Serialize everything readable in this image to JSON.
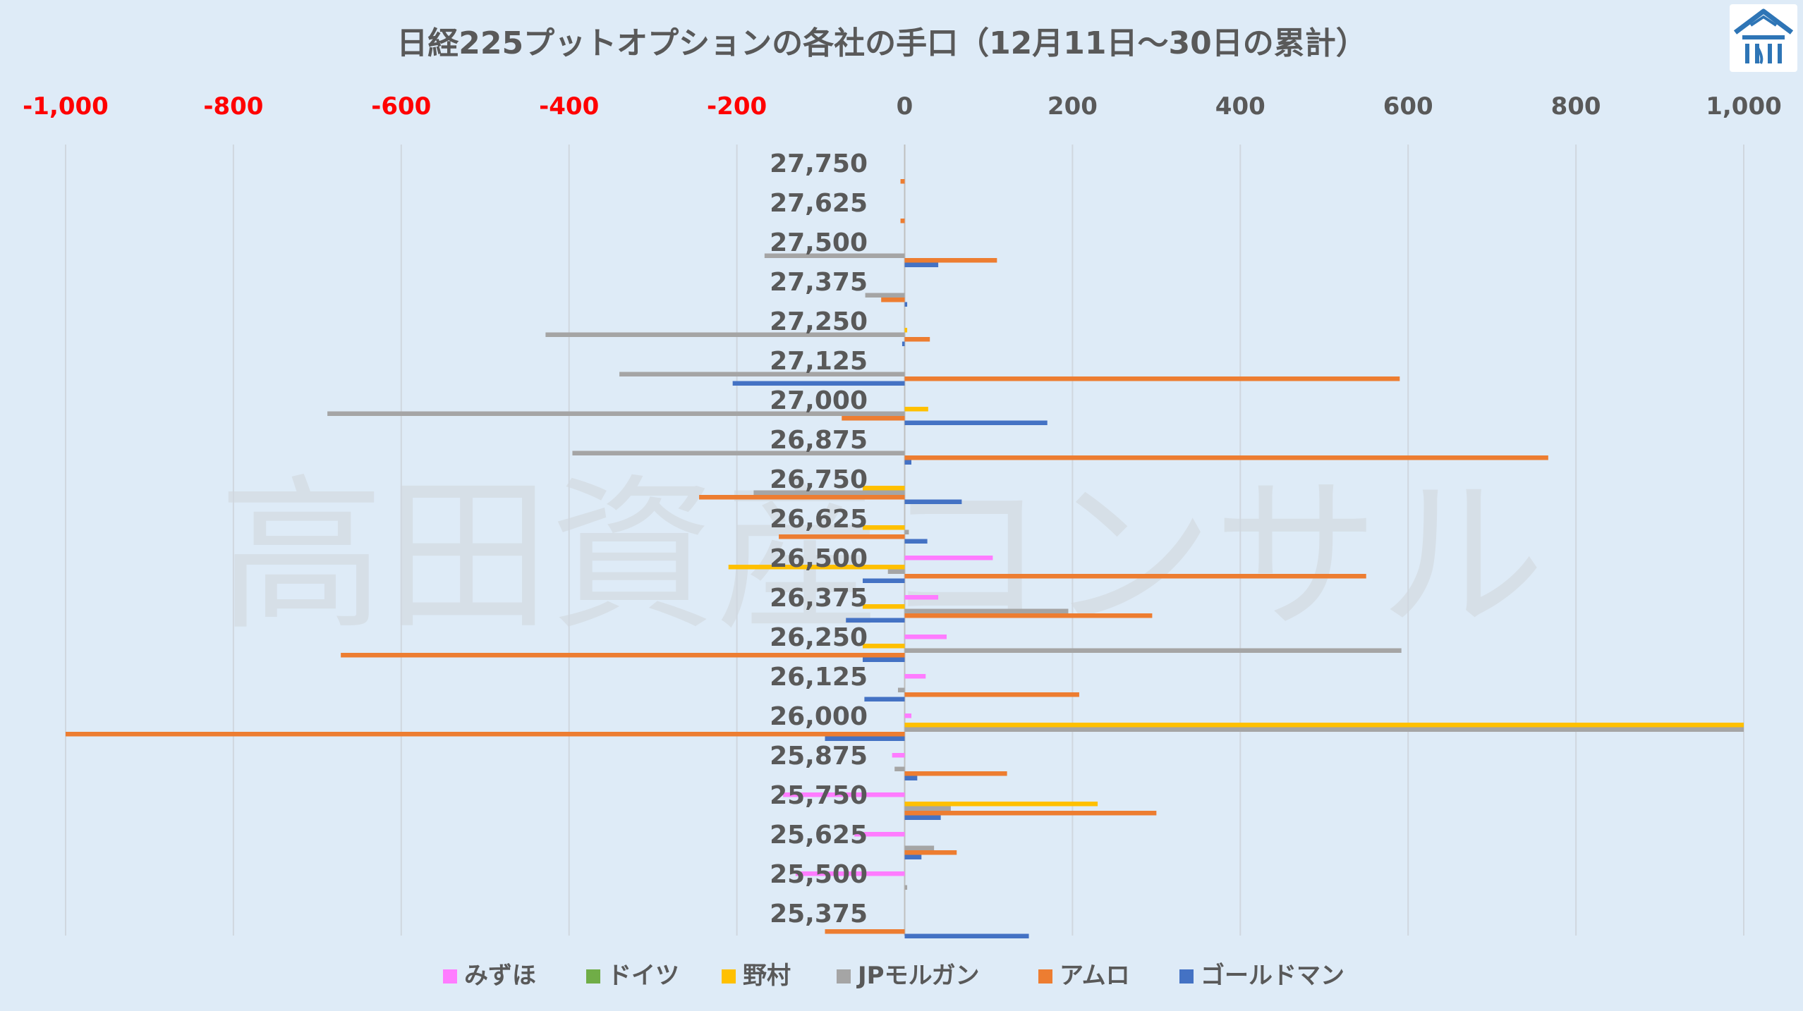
{
  "chart_data": {
    "type": "bar",
    "orientation": "horizontal",
    "title": "日経225プットオプションの各社の手口（12月11日〜30日の累計）",
    "watermark": "高田資産コンサル",
    "xlim": [
      -1000,
      1000
    ],
    "x_ticks": [
      "-1,000",
      "-800",
      "-600",
      "-400",
      "-200",
      "0",
      "200",
      "400",
      "600",
      "800",
      "1,000"
    ],
    "x_tick_values": [
      -1000,
      -800,
      -600,
      -400,
      -200,
      0,
      200,
      400,
      600,
      800,
      1000
    ],
    "negative_tick_color": "#ff0000",
    "positive_tick_color": "#595959",
    "grid": true,
    "legend_position": "bottom",
    "categories": [
      "27,750",
      "27,625",
      "27,500",
      "27,375",
      "27,250",
      "27,125",
      "27,000",
      "26,875",
      "26,750",
      "26,625",
      "26,500",
      "26,375",
      "26,250",
      "26,125",
      "26,000",
      "25,875",
      "25,750",
      "25,625",
      "25,500",
      "25,375"
    ],
    "series": [
      {
        "name": "みずほ",
        "color": "#ff7cff",
        "values": [
          0,
          0,
          0,
          0,
          0,
          0,
          0,
          0,
          0,
          0,
          105,
          40,
          50,
          25,
          8,
          -15,
          -145,
          -60,
          -130,
          0
        ]
      },
      {
        "name": "ドイツ",
        "color": "#70ad47",
        "values": [
          0,
          0,
          0,
          0,
          0,
          0,
          0,
          0,
          0,
          0,
          0,
          0,
          0,
          0,
          0,
          0,
          0,
          0,
          0,
          0
        ]
      },
      {
        "name": "野村",
        "color": "#ffc000",
        "values": [
          0,
          0,
          0,
          0,
          3,
          0,
          28,
          0,
          -50,
          -50,
          -210,
          -50,
          -50,
          0,
          1000,
          0,
          230,
          0,
          0,
          0
        ]
      },
      {
        "name": "JPモルガン",
        "color": "#a5a5a5",
        "values": [
          0,
          0,
          -167,
          -47,
          -428,
          -340,
          -688,
          -396,
          -180,
          5,
          -20,
          195,
          592,
          -8,
          1000,
          -12,
          55,
          35,
          3,
          0
        ]
      },
      {
        "name": "アムロ",
        "color": "#ed7d31",
        "values": [
          -5,
          -5,
          110,
          -28,
          30,
          590,
          -75,
          767,
          -245,
          -150,
          550,
          295,
          -672,
          208,
          -1000,
          122,
          300,
          62,
          0,
          -95
        ]
      },
      {
        "name": "ゴールドマン",
        "color": "#4472c4",
        "values": [
          0,
          0,
          40,
          3,
          -3,
          -205,
          170,
          8,
          68,
          27,
          -50,
          -70,
          -50,
          -48,
          -95,
          15,
          43,
          20,
          0,
          148
        ]
      }
    ]
  },
  "axis_text_color": "#595959",
  "title_color": "#595959"
}
